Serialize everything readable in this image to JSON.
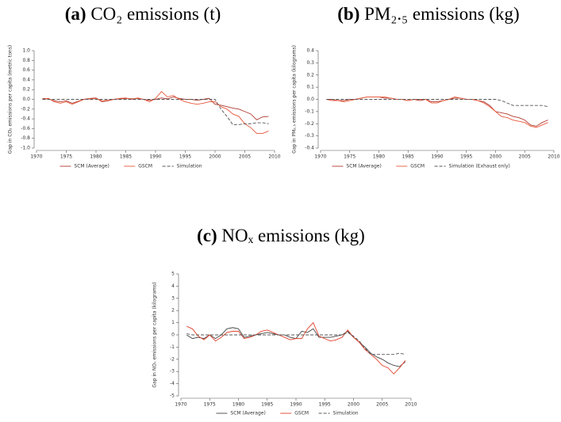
{
  "chart_data": [
    {
      "type": "line",
      "panel_label": "(a)",
      "title": "CO₂ emissions (t)",
      "ylabel": "Gap in CO₂ emissions per capita (metric tons)",
      "x": [
        1971,
        1972,
        1973,
        1974,
        1975,
        1976,
        1977,
        1978,
        1979,
        1980,
        1981,
        1982,
        1983,
        1984,
        1985,
        1986,
        1987,
        1988,
        1989,
        1990,
        1991,
        1992,
        1993,
        1994,
        1995,
        1996,
        1997,
        1998,
        1999,
        2000,
        2001,
        2002,
        2003,
        2004,
        2005,
        2006,
        2007,
        2008,
        2009
      ],
      "xlim": [
        1970,
        2010
      ],
      "xticks": [
        1970,
        1975,
        1980,
        1985,
        1990,
        1995,
        2000,
        2005,
        2010
      ],
      "ylim": [
        -1,
        1
      ],
      "yticks": [
        {
          "value": 1,
          "label": "1.0"
        },
        {
          "value": 0.8,
          "label": "0.8"
        },
        {
          "value": 0.6,
          "label": "0.6"
        },
        {
          "value": 0.4,
          "label": "0.4"
        },
        {
          "value": 0.2,
          "label": "0.2"
        },
        {
          "value": 0,
          "label": "0.0"
        },
        {
          "value": -0.2,
          "label": "-0.2"
        },
        {
          "value": -0.4,
          "label": "-0.4"
        },
        {
          "value": -0.6,
          "label": "-0.6"
        },
        {
          "value": -0.8,
          "label": "-0.8"
        },
        {
          "value": -1,
          "label": "-1.0"
        }
      ],
      "legend": "bottom",
      "series": [
        {
          "name": "SCM (Average)",
          "color": "#b03a2e",
          "style": "solid",
          "values": [
            0.02,
            0.01,
            -0.03,
            -0.05,
            -0.03,
            -0.08,
            -0.04,
            0.0,
            0.02,
            0.03,
            -0.05,
            -0.03,
            0.0,
            0.01,
            0.02,
            0.01,
            0.02,
            0.0,
            -0.02,
            0.0,
            0.03,
            0.01,
            0.05,
            0.02,
            0.0,
            0.0,
            -0.02,
            0.0,
            0.02,
            -0.1,
            -0.12,
            -0.15,
            -0.18,
            -0.2,
            -0.25,
            -0.3,
            -0.42,
            -0.36,
            -0.35
          ]
        },
        {
          "name": "GSCM",
          "color": "#e8573a",
          "style": "solid",
          "values": [
            0.0,
            0.02,
            -0.05,
            -0.08,
            -0.05,
            -0.1,
            -0.05,
            0.0,
            0.01,
            0.02,
            -0.03,
            -0.02,
            0.0,
            0.02,
            0.03,
            0.0,
            0.03,
            0.0,
            -0.05,
            0.02,
            0.16,
            0.05,
            0.08,
            0.0,
            -0.05,
            -0.08,
            -0.1,
            -0.08,
            -0.05,
            -0.05,
            -0.15,
            -0.2,
            -0.3,
            -0.35,
            -0.5,
            -0.58,
            -0.7,
            -0.7,
            -0.65
          ]
        },
        {
          "name": "Simulation",
          "color": "#555555",
          "style": "dashed",
          "values": [
            0,
            0,
            0,
            0,
            0,
            0,
            0,
            0,
            0,
            0,
            0,
            0,
            0,
            0,
            0,
            0,
            0,
            0,
            0,
            0,
            0,
            0,
            0,
            0,
            0,
            0,
            0,
            0,
            0,
            0,
            -0.2,
            -0.35,
            -0.52,
            -0.52,
            -0.5,
            -0.5,
            -0.48,
            -0.48,
            -0.5
          ]
        }
      ]
    },
    {
      "type": "line",
      "panel_label": "(b)",
      "title": "PM₂.₅ emissions (kg)",
      "ylabel": "Gap in PM₂.₅ emissions per capita (kilograms)",
      "x": [
        1971,
        1972,
        1973,
        1974,
        1975,
        1976,
        1977,
        1978,
        1979,
        1980,
        1981,
        1982,
        1983,
        1984,
        1985,
        1986,
        1987,
        1988,
        1989,
        1990,
        1991,
        1992,
        1993,
        1994,
        1995,
        1996,
        1997,
        1998,
        1999,
        2000,
        2001,
        2002,
        2003,
        2004,
        2005,
        2006,
        2007,
        2008,
        2009
      ],
      "xlim": [
        1970,
        2010
      ],
      "xticks": [
        1970,
        1975,
        1980,
        1985,
        1990,
        1995,
        2000,
        2005,
        2010
      ],
      "ylim": [
        -0.4,
        0.4
      ],
      "yticks": [
        {
          "value": 0.4,
          "label": "0.4"
        },
        {
          "value": 0.3,
          "label": "0.3"
        },
        {
          "value": 0.2,
          "label": "0.2"
        },
        {
          "value": 0.1,
          "label": "0.1"
        },
        {
          "value": 0,
          "label": "0.0"
        },
        {
          "value": -0.1,
          "label": "-0.1"
        },
        {
          "value": -0.2,
          "label": "-0.2"
        },
        {
          "value": -0.3,
          "label": "-0.3"
        },
        {
          "value": -0.4,
          "label": "-0.4"
        }
      ],
      "legend": "bottom",
      "series": [
        {
          "name": "SCM (Average)",
          "color": "#b03a2e",
          "style": "solid",
          "values": [
            0.0,
            0.0,
            -0.01,
            -0.01,
            0.0,
            0.0,
            0.01,
            0.02,
            0.02,
            0.02,
            0.01,
            0.01,
            0.0,
            0.0,
            -0.01,
            0.0,
            -0.01,
            0.0,
            -0.02,
            -0.02,
            -0.01,
            0.0,
            0.01,
            0.01,
            0.0,
            0.0,
            -0.01,
            -0.02,
            -0.05,
            -0.1,
            -0.11,
            -0.12,
            -0.14,
            -0.15,
            -0.17,
            -0.21,
            -0.22,
            -0.19,
            -0.17
          ]
        },
        {
          "name": "GSCM",
          "color": "#e8573a",
          "style": "solid",
          "values": [
            0.0,
            -0.01,
            -0.01,
            -0.02,
            -0.01,
            0.0,
            0.01,
            0.02,
            0.02,
            0.02,
            0.02,
            0.01,
            0.0,
            0.0,
            -0.01,
            0.0,
            0.0,
            0.0,
            -0.03,
            -0.03,
            -0.01,
            0.0,
            0.02,
            0.01,
            0.0,
            0.0,
            -0.01,
            -0.03,
            -0.06,
            -0.1,
            -0.14,
            -0.15,
            -0.17,
            -0.18,
            -0.19,
            -0.22,
            -0.23,
            -0.21,
            -0.19
          ]
        },
        {
          "name": "Simulation (Exhaust only)",
          "color": "#555555",
          "style": "dashed",
          "values": [
            0,
            0,
            0,
            0,
            0,
            0,
            0,
            0,
            0,
            0,
            0,
            0,
            0,
            0,
            0,
            0,
            0,
            0,
            0,
            0,
            0,
            0,
            0,
            0,
            0,
            0,
            0,
            0,
            0,
            0,
            -0.01,
            -0.03,
            -0.05,
            -0.05,
            -0.05,
            -0.05,
            -0.05,
            -0.05,
            -0.06
          ]
        }
      ]
    },
    {
      "type": "line",
      "panel_label": "(c)",
      "title": "NOₓ emissions (kg)",
      "ylabel": "Gap in NOₓ emissions per capita (kilograms)",
      "x": [
        1971,
        1972,
        1973,
        1974,
        1975,
        1976,
        1977,
        1978,
        1979,
        1980,
        1981,
        1982,
        1983,
        1984,
        1985,
        1986,
        1987,
        1988,
        1989,
        1990,
        1991,
        1992,
        1993,
        1994,
        1995,
        1996,
        1997,
        1998,
        1999,
        2000,
        2001,
        2002,
        2003,
        2004,
        2005,
        2006,
        2007,
        2008,
        2009
      ],
      "xlim": [
        1970,
        2010
      ],
      "xticks": [
        1970,
        1975,
        1980,
        1985,
        1990,
        1995,
        2000,
        2005,
        2010
      ],
      "ylim": [
        -5,
        5
      ],
      "yticks": [
        5,
        4,
        3,
        2,
        1,
        0,
        -1,
        -2,
        -3,
        -4,
        -5
      ],
      "legend": "bottom",
      "series": [
        {
          "name": "SCM (Average)",
          "color": "#444444",
          "style": "solid",
          "values": [
            0.0,
            -0.3,
            -0.2,
            -0.3,
            0.0,
            -0.3,
            0.0,
            0.5,
            0.6,
            0.5,
            -0.2,
            -0.1,
            0.0,
            0.1,
            0.2,
            0.1,
            0.0,
            0.0,
            -0.2,
            -0.3,
            0.3,
            0.2,
            0.5,
            -0.2,
            -0.2,
            -0.2,
            -0.1,
            0.0,
            0.3,
            -0.2,
            -0.6,
            -1.0,
            -1.5,
            -1.8,
            -2.0,
            -2.3,
            -2.5,
            -2.6,
            -2.2
          ]
        },
        {
          "name": "GSCM",
          "color": "#e0402a",
          "style": "solid",
          "values": [
            0.7,
            0.5,
            -0.1,
            -0.4,
            0.0,
            -0.5,
            -0.2,
            0.2,
            0.3,
            0.3,
            -0.3,
            -0.2,
            0.0,
            0.3,
            0.4,
            0.2,
            0.0,
            -0.2,
            -0.4,
            -0.3,
            -0.3,
            0.5,
            1.0,
            -0.1,
            -0.3,
            -0.5,
            -0.4,
            -0.2,
            0.4,
            -0.2,
            -0.6,
            -1.2,
            -1.6,
            -2.0,
            -2.5,
            -2.7,
            -3.2,
            -2.7,
            -2.1
          ]
        },
        {
          "name": "Simulation",
          "color": "#555555",
          "style": "dashed",
          "values": [
            0.1,
            0,
            0,
            0,
            0,
            0,
            0,
            0,
            0,
            0,
            0,
            0,
            0,
            0,
            0,
            0,
            0,
            0,
            0,
            0,
            0,
            0,
            0,
            0,
            0,
            0,
            0,
            0,
            0.2,
            -0.1,
            -0.5,
            -1.1,
            -1.6,
            -1.6,
            -1.6,
            -1.6,
            -1.6,
            -1.5,
            -1.6
          ]
        }
      ]
    }
  ]
}
